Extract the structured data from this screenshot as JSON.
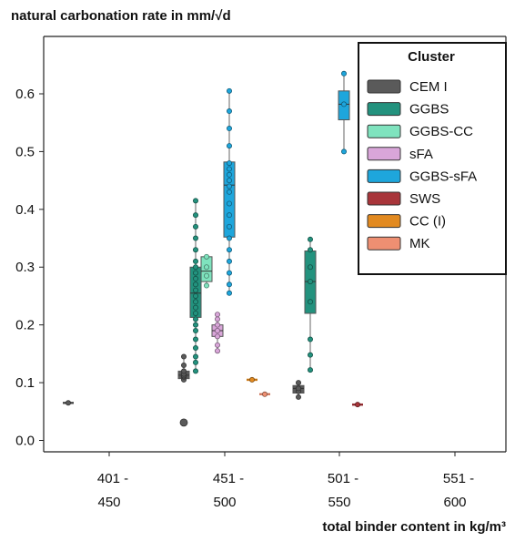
{
  "chart_data": {
    "type": "box",
    "ylabel": "natural carbonation rate in mm/√d",
    "xlabel": "total binder content in kg/m³",
    "ylim": [
      -0.02,
      0.68
    ],
    "yticks": [
      0.0,
      0.1,
      0.2,
      0.3,
      0.4,
      0.5,
      0.6
    ],
    "ytick_labels": [
      "0.0",
      "0.1",
      "0.2",
      "0.3",
      "0.4",
      "0.5",
      "0.6"
    ],
    "categories": [
      {
        "line1": "401 -",
        "line2": "450"
      },
      {
        "line1": "451 -",
        "line2": "500"
      },
      {
        "line1": "501 -",
        "line2": "550"
      },
      {
        "line1": "551 -",
        "line2": "600"
      }
    ],
    "grid": false,
    "legend": {
      "title": "Cluster",
      "position": "top-right",
      "entries": [
        {
          "name": "CEM I",
          "color": "#5a5a5a"
        },
        {
          "name": "GGBS",
          "color": "#23927e"
        },
        {
          "name": "GGBS-CC",
          "color": "#7fe3be"
        },
        {
          "name": "sFA",
          "color": "#d9a6d9"
        },
        {
          "name": "GGBS-sFA",
          "color": "#1ea6dc"
        },
        {
          "name": "SWS",
          "color": "#a8353a"
        },
        {
          "name": "CC (I)",
          "color": "#e28a20"
        },
        {
          "name": "MK",
          "color": "#ee8f72"
        }
      ]
    },
    "series": [
      {
        "name": "CEM I",
        "category": 0,
        "slot": 0,
        "box": {
          "min": 0.065,
          "q1": 0.065,
          "median": 0.065,
          "q3": 0.065,
          "max": 0.065
        },
        "points": [
          0.065
        ],
        "outliers": []
      },
      {
        "name": "CEM I",
        "category": 1,
        "slot": 0,
        "box": {
          "min": 0.105,
          "q1": 0.107,
          "median": 0.113,
          "q3": 0.12,
          "max": 0.145
        },
        "points": [
          0.105,
          0.11,
          0.112,
          0.115,
          0.12,
          0.13,
          0.145
        ],
        "outliers": [
          0.031
        ]
      },
      {
        "name": "GGBS",
        "category": 1,
        "slot": 1,
        "box": {
          "min": 0.12,
          "q1": 0.213,
          "median": 0.255,
          "q3": 0.3,
          "max": 0.415
        },
        "points": [
          0.12,
          0.135,
          0.145,
          0.16,
          0.175,
          0.19,
          0.2,
          0.21,
          0.22,
          0.23,
          0.24,
          0.25,
          0.26,
          0.27,
          0.28,
          0.29,
          0.3,
          0.31,
          0.33,
          0.35,
          0.37,
          0.39,
          0.415
        ],
        "outliers": []
      },
      {
        "name": "GGBS-CC",
        "category": 1,
        "slot": 2,
        "box": {
          "min": 0.265,
          "q1": 0.275,
          "median": 0.293,
          "q3": 0.318,
          "max": 0.32
        },
        "points": [
          0.268,
          0.285,
          0.3,
          0.318
        ],
        "outliers": []
      },
      {
        "name": "sFA",
        "category": 1,
        "slot": 3,
        "box": {
          "min": 0.155,
          "q1": 0.18,
          "median": 0.19,
          "q3": 0.2,
          "max": 0.218
        },
        "points": [
          0.155,
          0.165,
          0.18,
          0.19,
          0.2,
          0.21,
          0.218
        ],
        "outliers": []
      },
      {
        "name": "GGBS-sFA",
        "category": 1,
        "slot": 4,
        "box": {
          "min": 0.253,
          "q1": 0.352,
          "median": 0.442,
          "q3": 0.482,
          "max": 0.605
        },
        "points": [
          0.255,
          0.27,
          0.29,
          0.31,
          0.33,
          0.35,
          0.37,
          0.39,
          0.41,
          0.43,
          0.44,
          0.45,
          0.46,
          0.47,
          0.48,
          0.51,
          0.54,
          0.57,
          0.605
        ],
        "outliers": []
      },
      {
        "name": "CC (I)",
        "category": 1,
        "slot": 6,
        "box": {
          "min": 0.105,
          "q1": 0.105,
          "median": 0.105,
          "q3": 0.105,
          "max": 0.105
        },
        "points": [
          0.105
        ],
        "outliers": []
      },
      {
        "name": "MK",
        "category": 1,
        "slot": 7,
        "box": {
          "min": 0.08,
          "q1": 0.08,
          "median": 0.08,
          "q3": 0.08,
          "max": 0.08
        },
        "points": [
          0.08
        ],
        "outliers": []
      },
      {
        "name": "CEM I",
        "category": 2,
        "slot": 0,
        "box": {
          "min": 0.075,
          "q1": 0.082,
          "median": 0.09,
          "q3": 0.095,
          "max": 0.1
        },
        "points": [
          0.075,
          0.085,
          0.09,
          0.1
        ],
        "outliers": []
      },
      {
        "name": "GGBS",
        "category": 2,
        "slot": 1,
        "box": {
          "min": 0.122,
          "q1": 0.22,
          "median": 0.275,
          "q3": 0.328,
          "max": 0.348
        },
        "points": [
          0.122,
          0.148,
          0.175,
          0.24,
          0.275,
          0.3,
          0.33,
          0.348
        ],
        "outliers": []
      },
      {
        "name": "GGBS-sFA",
        "category": 2,
        "slot": 4,
        "box": {
          "min": 0.5,
          "q1": 0.555,
          "median": 0.582,
          "q3": 0.605,
          "max": 0.635
        },
        "points": [
          0.5,
          0.582,
          0.635
        ],
        "outliers": []
      },
      {
        "name": "SWS",
        "category": 2,
        "slot": 5,
        "box": {
          "min": 0.062,
          "q1": 0.062,
          "median": 0.062,
          "q3": 0.062,
          "max": 0.062
        },
        "points": [
          0.062
        ],
        "outliers": []
      }
    ]
  }
}
